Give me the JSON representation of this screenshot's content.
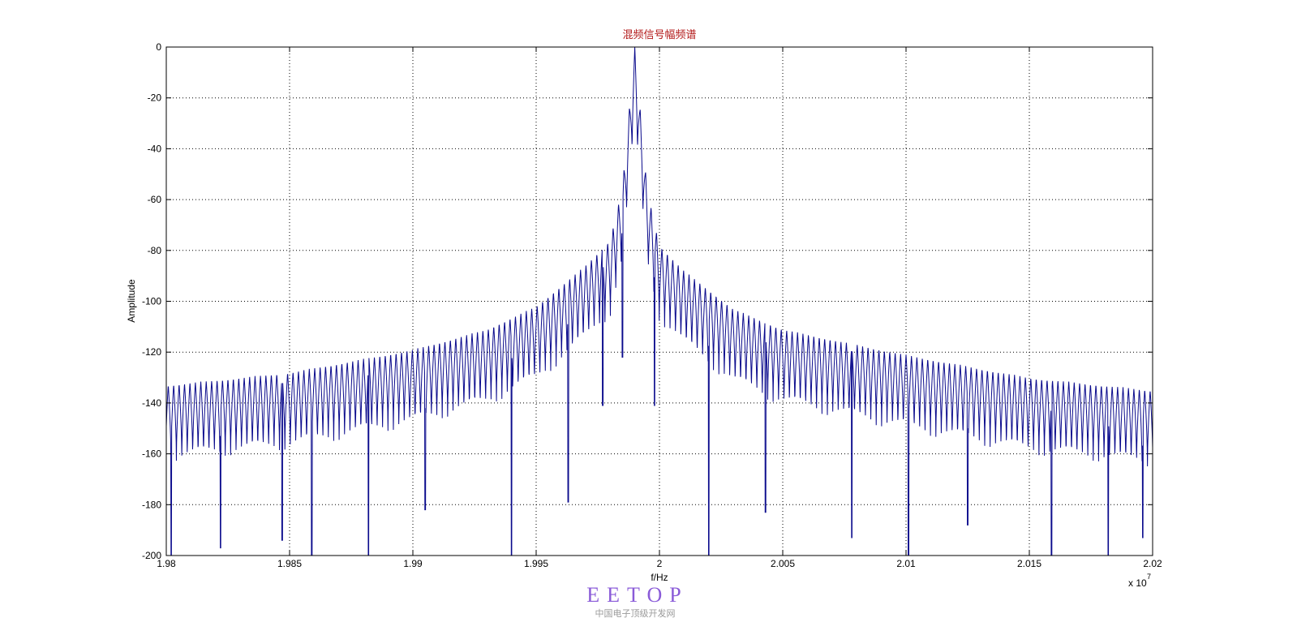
{
  "chart_data": {
    "type": "line",
    "title": "混频信号幅频谱",
    "xlabel": "f/Hz",
    "ylabel": "Amplitude",
    "x_exponent_label": "x 10",
    "x_exponent_power": "7",
    "xlim": [
      1.98,
      2.02
    ],
    "ylim": [
      -200,
      0
    ],
    "xticks": [
      1.98,
      1.985,
      1.99,
      1.995,
      2.0,
      2.005,
      2.01,
      2.015,
      2.02
    ],
    "xtick_labels": [
      "1.98",
      "1.985",
      "1.99",
      "1.995",
      "2",
      "2.005",
      "2.01",
      "2.015",
      "2.02"
    ],
    "yticks": [
      0,
      -20,
      -40,
      -60,
      -80,
      -100,
      -120,
      -140,
      -160,
      -180,
      -200
    ],
    "ytick_labels": [
      "0",
      "-20",
      "-40",
      "-60",
      "-80",
      "-100",
      "-120",
      "-140",
      "-160",
      "-180",
      "-200"
    ],
    "grid": true,
    "line_color": "#0a0a8c",
    "series": [
      {
        "peak_x": 1.999,
        "peak_y": 0,
        "envelope": [
          {
            "x": 1.98,
            "y": -133
          },
          {
            "x": 1.985,
            "y": -128
          },
          {
            "x": 1.99,
            "y": -119
          },
          {
            "x": 1.993,
            "y": -111
          },
          {
            "x": 1.995,
            "y": -102
          },
          {
            "x": 1.997,
            "y": -86
          },
          {
            "x": 1.998,
            "y": -76
          },
          {
            "x": 1.9985,
            "y": -55
          },
          {
            "x": 1.999,
            "y": 0
          },
          {
            "x": 1.9995,
            "y": -56
          },
          {
            "x": 2.0,
            "y": -78
          },
          {
            "x": 2.001,
            "y": -88
          },
          {
            "x": 2.003,
            "y": -103
          },
          {
            "x": 2.005,
            "y": -111
          },
          {
            "x": 2.01,
            "y": -121
          },
          {
            "x": 2.015,
            "y": -130
          },
          {
            "x": 2.02,
            "y": -135
          }
        ],
        "deep_nulls": [
          {
            "x": 1.9802,
            "y": -200
          },
          {
            "x": 1.9822,
            "y": -197
          },
          {
            "x": 1.9847,
            "y": -194
          },
          {
            "x": 1.9859,
            "y": -200
          },
          {
            "x": 1.9882,
            "y": -200
          },
          {
            "x": 1.9905,
            "y": -182
          },
          {
            "x": 1.994,
            "y": -200
          },
          {
            "x": 1.9963,
            "y": -179
          },
          {
            "x": 1.9977,
            "y": -141
          },
          {
            "x": 1.9985,
            "y": -122
          },
          {
            "x": 1.9998,
            "y": -141
          },
          {
            "x": 2.002,
            "y": -200
          },
          {
            "x": 2.0043,
            "y": -183
          },
          {
            "x": 2.0078,
            "y": -193
          },
          {
            "x": 2.0101,
            "y": -200
          },
          {
            "x": 2.0125,
            "y": -188
          },
          {
            "x": 2.0159,
            "y": -200
          },
          {
            "x": 2.0182,
            "y": -200
          },
          {
            "x": 2.0196,
            "y": -193
          }
        ],
        "ripple_period": 0.00022
      }
    ]
  },
  "watermark": {
    "main": "EETOP",
    "sub": "中国电子顶级开发网"
  }
}
